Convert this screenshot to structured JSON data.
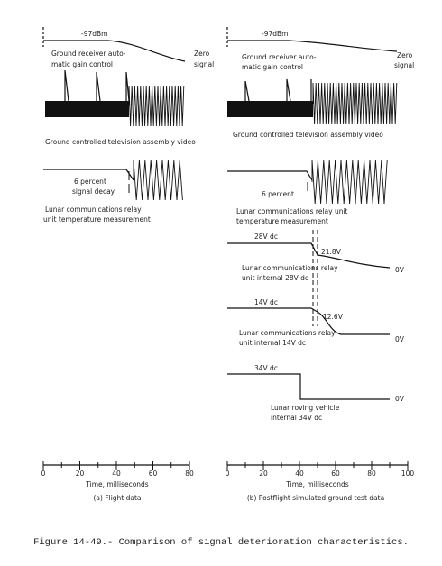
{
  "left": {
    "agc_level": "-97dBm",
    "agc_label": [
      "Ground receiver auto-",
      "matic gain control"
    ],
    "zero": [
      "Zero",
      "signal"
    ],
    "video_label": "Ground controlled television assembly video",
    "decay": [
      "6 percent",
      "signal decay"
    ],
    "temp_label": [
      "Lunar communications relay",
      "unit temperature measurement"
    ],
    "ticks": [
      0,
      20,
      40,
      60,
      80
    ],
    "axis_label": "Time, milliseconds",
    "panel_label": "(a) Flight data"
  },
  "right": {
    "agc_level": "-97dBm",
    "agc_label": [
      "Ground receiver auto-",
      "matic gain control"
    ],
    "zero": [
      "Zero",
      "signal"
    ],
    "video_label": "Ground controlled television assembly video",
    "decay": "6 percent",
    "temp_label": [
      "Lunar communications relay unit",
      "temperature measurement"
    ],
    "v28": {
      "start": "28V dc",
      "drop": "21.8V",
      "label": [
        "Lunar communications relay",
        "unit internal 28V dc"
      ],
      "end": "0V"
    },
    "v14": {
      "start": "14V dc",
      "drop": "12.6V",
      "label": [
        "Lunar communications relay",
        "unit internal 14V dc"
      ],
      "end": "0V"
    },
    "v34": {
      "start": "34V dc",
      "label": [
        "Lunar roving vehicle",
        "internal 34V dc"
      ],
      "end": "0V"
    },
    "ticks": [
      0,
      20,
      40,
      60,
      80,
      100
    ],
    "axis_label": "Time, milliseconds",
    "panel_label": "(b) Postflight simulated ground test data"
  },
  "caption": "Figure 14-49.- Comparison of signal deterioration characteristics."
}
